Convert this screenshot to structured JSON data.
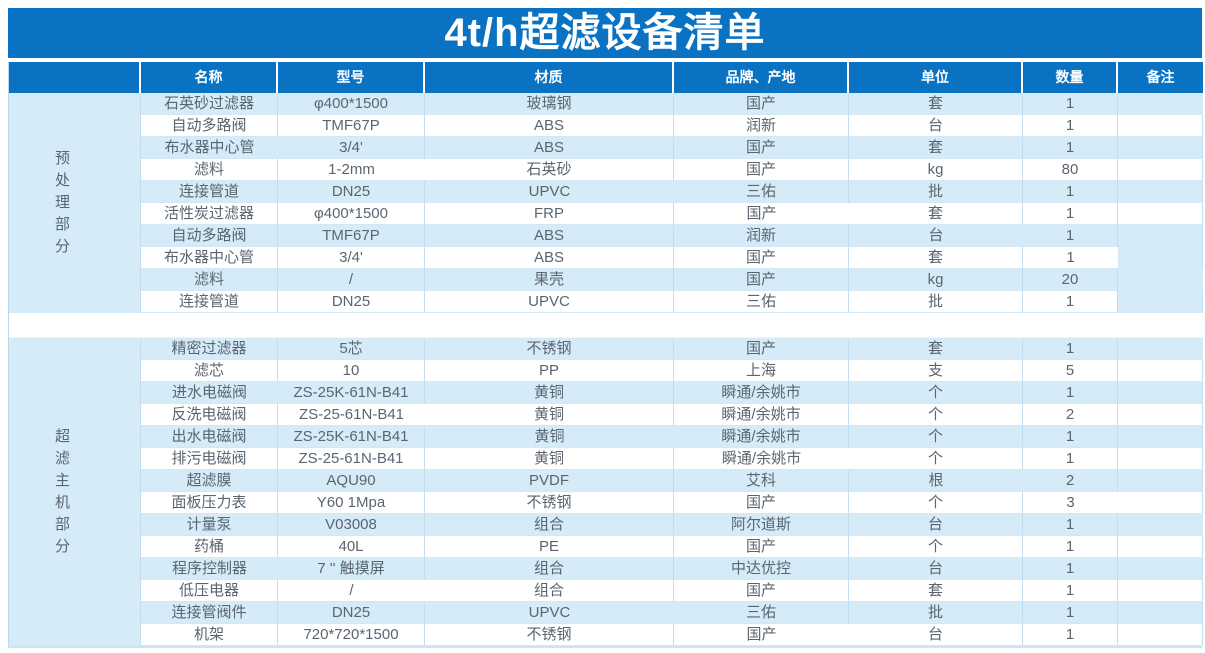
{
  "title": "4t/h超滤设备清单",
  "columns": [
    "名称",
    "型号",
    "材质",
    "品牌、产地",
    "单位",
    "数量",
    "备注"
  ],
  "colors": {
    "accent_blue": "#0a72c2",
    "row_shade_blue": "#d6ebf8",
    "text_gray": "#5a6570"
  },
  "sections": [
    {
      "label": "预处理部分",
      "note_shaded_rows": [
        7,
        9
      ],
      "rows": [
        [
          "石英砂过滤器",
          "φ400*1500",
          "玻璃钢",
          "国产",
          "套",
          "1",
          ""
        ],
        [
          "自动多路阀",
          "TMF67P",
          "ABS",
          "润新",
          "台",
          "1",
          ""
        ],
        [
          "布水器中心管",
          "3/4'",
          "ABS",
          "国产",
          "套",
          "1",
          ""
        ],
        [
          "滤料",
          "1-2mm",
          "石英砂",
          "国产",
          "kg",
          "80",
          ""
        ],
        [
          "连接管道",
          "DN25",
          "UPVC",
          "三佑",
          "批",
          "1",
          ""
        ],
        [
          "活性炭过滤器",
          "φ400*1500",
          "FRP",
          "国产",
          "套",
          "1",
          ""
        ],
        [
          "自动多路阀",
          "TMF67P",
          "ABS",
          "润新",
          "台",
          "1",
          ""
        ],
        [
          "布水器中心管",
          "3/4'",
          "ABS",
          "国产",
          "套",
          "1",
          ""
        ],
        [
          "滤料",
          "/",
          "果壳",
          "国产",
          "kg",
          "20",
          ""
        ],
        [
          "连接管道",
          "DN25",
          "UPVC",
          "三佑",
          "批",
          "1",
          ""
        ]
      ]
    },
    {
      "label": "超滤主机部分",
      "note_shaded_rows": [],
      "rows": [
        [
          "精密过滤器",
          "5芯",
          "不锈钢",
          "国产",
          "套",
          "1",
          ""
        ],
        [
          "滤芯",
          "10",
          "PP",
          "上海",
          "支",
          "5",
          ""
        ],
        [
          "进水电磁阀",
          "ZS-25K-61N-B41",
          "黄铜",
          "瞬通/余姚市",
          "个",
          "1",
          ""
        ],
        [
          "反洗电磁阀",
          "ZS-25-61N-B41",
          "黄铜",
          "瞬通/余姚市",
          "个",
          "2",
          ""
        ],
        [
          "出水电磁阀",
          "ZS-25K-61N-B41",
          "黄铜",
          "瞬通/余姚市",
          "个",
          "1",
          ""
        ],
        [
          "排污电磁阀",
          "ZS-25-61N-B41",
          "黄铜",
          "瞬通/余姚市",
          "个",
          "1",
          ""
        ],
        [
          "超滤膜",
          "AQU90",
          "PVDF",
          "艾科",
          "根",
          "2",
          ""
        ],
        [
          "面板压力表",
          "Y60 1Mpa",
          "不锈钢",
          "国产",
          "个",
          "3",
          ""
        ],
        [
          "计量泵",
          "V03008",
          "组合",
          "阿尔道斯",
          "台",
          "1",
          ""
        ],
        [
          "药桶",
          "40L",
          "PE",
          "国产",
          "个",
          "1",
          ""
        ],
        [
          "程序控制器",
          "7 '' 触摸屏",
          "组合",
          "中达优控",
          "台",
          "1",
          ""
        ],
        [
          "低压电器",
          "/",
          "组合",
          "国产",
          "套",
          "1",
          ""
        ],
        [
          "连接管阀件",
          "DN25",
          "UPVC",
          "三佑",
          "批",
          "1",
          ""
        ],
        [
          "机架",
          "720*720*1500",
          "不锈钢",
          "国产",
          "台",
          "1",
          ""
        ]
      ]
    }
  ]
}
